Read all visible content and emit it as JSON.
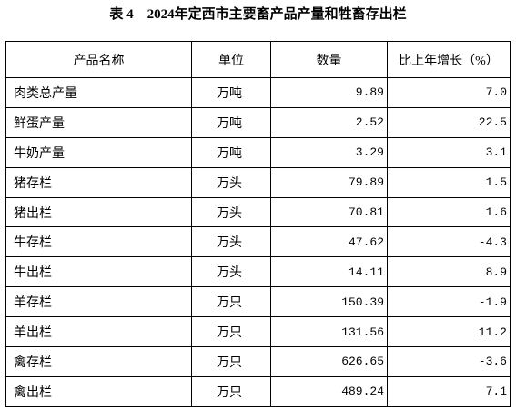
{
  "title": "表 4　2024年定西市主要畜产品产量和牲畜存出栏",
  "table": {
    "header": [
      "产品名称",
      "单位",
      "数量",
      "比上年增长（%）"
    ],
    "rows": [
      [
        "肉类总产量",
        "万吨",
        "9.89",
        "7.0"
      ],
      [
        "鲜蛋产量",
        "万吨",
        "2.52",
        "22.5"
      ],
      [
        "牛奶产量",
        "万吨",
        "3.29",
        "3.1"
      ],
      [
        "猪存栏",
        "万头",
        "79.89",
        "1.5"
      ],
      [
        "猪出栏",
        "万头",
        "70.81",
        "1.6"
      ],
      [
        "牛存栏",
        "万头",
        "47.62",
        "-4.3"
      ],
      [
        "牛出栏",
        "万头",
        "14.11",
        "8.9"
      ],
      [
        "羊存栏",
        "万只",
        "150.39",
        "-1.9"
      ],
      [
        "羊出栏",
        "万只",
        "131.56",
        "11.2"
      ],
      [
        "禽存栏",
        "万只",
        "626.65",
        "-3.6"
      ],
      [
        "禽出栏",
        "万只",
        "489.24",
        "7.1"
      ]
    ]
  }
}
